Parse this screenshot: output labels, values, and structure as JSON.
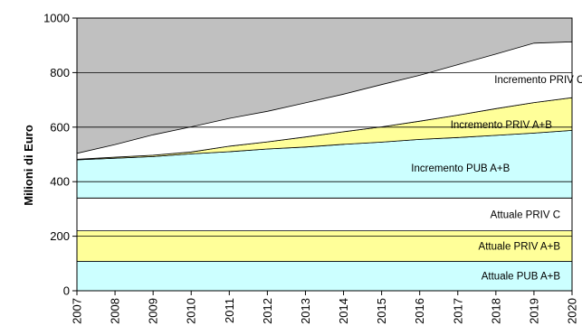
{
  "chart_data": {
    "type": "area",
    "stacked": true,
    "title": "",
    "xlabel": "",
    "ylabel": "Milioni di Euro",
    "ylim": [
      0,
      1000
    ],
    "yticks": [
      "0",
      "200",
      "400",
      "600",
      "800",
      "1000"
    ],
    "x": [
      "2007",
      "2008",
      "2009",
      "2010",
      "2011",
      "2012",
      "2013",
      "2014",
      "2015",
      "2016",
      "2017",
      "2018",
      "2019",
      "2020"
    ],
    "grid": "horizontal",
    "plot_background": "#c0c0c0",
    "series": [
      {
        "name": "Attuale PUB A+B",
        "color": "#ccffff",
        "values": [
          108,
          108,
          108,
          108,
          108,
          108,
          108,
          108,
          108,
          108,
          108,
          108,
          108,
          108
        ]
      },
      {
        "name": "Attuale PRIV A+B",
        "color": "#ffff99",
        "values": [
          112,
          112,
          112,
          112,
          112,
          112,
          112,
          112,
          112,
          112,
          112,
          112,
          112,
          112
        ]
      },
      {
        "name": "Attuale PRIV C",
        "color": "#ffffff",
        "values": [
          120,
          120,
          120,
          120,
          120,
          120,
          120,
          120,
          120,
          120,
          120,
          120,
          120,
          120
        ]
      },
      {
        "name": "Incremento PUB A+B",
        "color": "#ccffff",
        "values": [
          140,
          146,
          152,
          162,
          170,
          180,
          187,
          197,
          205,
          215,
          222,
          230,
          238,
          248
        ]
      },
      {
        "name": "Incremento PRIV A+B",
        "color": "#ffff99",
        "values": [
          2,
          4,
          5,
          7,
          20,
          26,
          37,
          46,
          56,
          67,
          82,
          98,
          112,
          120
        ]
      },
      {
        "name": "Incremento PRIV C",
        "color": "#ffffff",
        "values": [
          22,
          46,
          75,
          92,
          102,
          112,
          125,
          138,
          155,
          168,
          185,
          200,
          218,
          205
        ]
      }
    ]
  }
}
